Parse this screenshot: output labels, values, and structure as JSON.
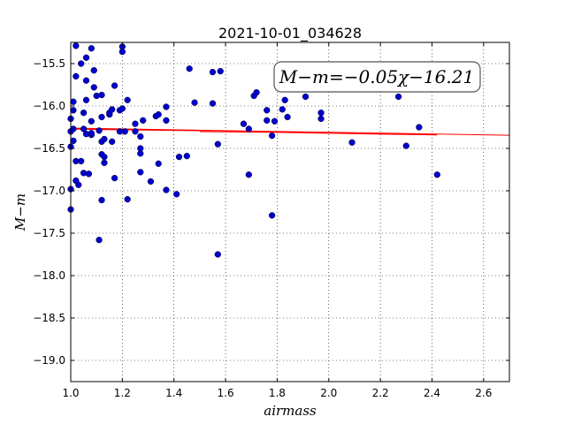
{
  "chart_data": {
    "type": "scatter",
    "title": "2021-10-01_034628",
    "xlabel": "airmass",
    "ylabel": "M−m",
    "annotation": "M−m=−0.05χ−16.21",
    "xlim": [
      1.0,
      2.7
    ],
    "ylim": [
      -19.25,
      -15.25
    ],
    "x_ticks": [
      1.0,
      1.2,
      1.4,
      1.6,
      1.8,
      2.0,
      2.2,
      2.4,
      2.6
    ],
    "x_tick_labels": [
      "1.0",
      "1.2",
      "1.4",
      "1.6",
      "1.8",
      "2.0",
      "2.2",
      "2.4",
      "2.6"
    ],
    "y_ticks": [
      -15.5,
      -16.0,
      -16.5,
      -17.0,
      -17.5,
      -18.0,
      -18.5,
      -19.0
    ],
    "y_tick_labels": [
      "−15.5",
      "−16.0",
      "−16.5",
      "−17.0",
      "−17.5",
      "−18.0",
      "−18.5",
      "−19.0"
    ],
    "grid": true,
    "marker_color": "#0000cc",
    "fit_color": "#ff0000",
    "fit": {
      "slope": -0.05,
      "intercept": -16.21,
      "x_range": [
        1.0,
        2.7
      ]
    },
    "fit_segments": [
      {
        "x": [
          1.0,
          1.2
        ],
        "y": [
          -16.27,
          -16.28
        ]
      },
      {
        "x": [
          1.2,
          1.5
        ],
        "y": [
          -16.28,
          -16.29
        ]
      },
      {
        "x": [
          1.5,
          1.8
        ],
        "y": [
          -16.3,
          -16.31
        ]
      },
      {
        "x": [
          1.8,
          2.0
        ],
        "y": [
          -16.31,
          -16.32
        ]
      },
      {
        "x": [
          2.0,
          2.2
        ],
        "y": [
          -16.32,
          -16.33
        ]
      },
      {
        "x": [
          2.2,
          2.42
        ],
        "y": [
          -16.33,
          -16.34
        ]
      }
    ],
    "points": [
      [
        1.0,
        -16.15
      ],
      [
        1.0,
        -16.3
      ],
      [
        1.0,
        -16.48
      ],
      [
        1.0,
        -16.98
      ],
      [
        1.0,
        -17.22
      ],
      [
        1.01,
        -15.95
      ],
      [
        1.01,
        -16.05
      ],
      [
        1.01,
        -16.27
      ],
      [
        1.01,
        -16.41
      ],
      [
        1.02,
        -15.29
      ],
      [
        1.02,
        -15.65
      ],
      [
        1.02,
        -16.65
      ],
      [
        1.02,
        -16.88
      ],
      [
        1.03,
        -16.93
      ],
      [
        1.04,
        -15.5
      ],
      [
        1.04,
        -16.65
      ],
      [
        1.05,
        -16.08
      ],
      [
        1.05,
        -16.27
      ],
      [
        1.05,
        -16.79
      ],
      [
        1.06,
        -15.43
      ],
      [
        1.06,
        -15.7
      ],
      [
        1.06,
        -15.93
      ],
      [
        1.06,
        -16.33
      ],
      [
        1.07,
        -16.8
      ],
      [
        1.08,
        -16.18
      ],
      [
        1.08,
        -16.34
      ],
      [
        1.08,
        -16.32
      ],
      [
        1.08,
        -15.32
      ],
      [
        1.09,
        -15.58
      ],
      [
        1.09,
        -15.78
      ],
      [
        1.1,
        -15.88
      ],
      [
        1.11,
        -16.29
      ],
      [
        1.11,
        -17.58
      ],
      [
        1.12,
        -15.87
      ],
      [
        1.12,
        -16.57
      ],
      [
        1.12,
        -16.42
      ],
      [
        1.12,
        -17.11
      ],
      [
        1.12,
        -16.13
      ],
      [
        1.13,
        -16.67
      ],
      [
        1.13,
        -16.6
      ],
      [
        1.13,
        -16.39
      ],
      [
        1.15,
        -16.1
      ],
      [
        1.15,
        -16.08
      ],
      [
        1.16,
        -16.42
      ],
      [
        1.16,
        -16.04
      ],
      [
        1.17,
        -15.76
      ],
      [
        1.17,
        -16.85
      ],
      [
        1.19,
        -16.3
      ],
      [
        1.19,
        -16.05
      ],
      [
        1.2,
        -15.3
      ],
      [
        1.2,
        -15.36
      ],
      [
        1.2,
        -16.03
      ],
      [
        1.21,
        -16.3
      ],
      [
        1.22,
        -15.93
      ],
      [
        1.22,
        -17.1
      ],
      [
        1.25,
        -16.21
      ],
      [
        1.25,
        -16.3
      ],
      [
        1.27,
        -16.36
      ],
      [
        1.27,
        -16.5
      ],
      [
        1.27,
        -16.56
      ],
      [
        1.27,
        -16.78
      ],
      [
        1.28,
        -16.17
      ],
      [
        1.31,
        -16.89
      ],
      [
        1.33,
        -16.12
      ],
      [
        1.34,
        -16.1
      ],
      [
        1.34,
        -16.68
      ],
      [
        1.37,
        -16.01
      ],
      [
        1.37,
        -16.17
      ],
      [
        1.37,
        -16.99
      ],
      [
        1.41,
        -17.04
      ],
      [
        1.42,
        -16.6
      ],
      [
        1.45,
        -16.59
      ],
      [
        1.46,
        -15.56
      ],
      [
        1.48,
        -15.96
      ],
      [
        1.55,
        -15.6
      ],
      [
        1.55,
        -15.97
      ],
      [
        1.57,
        -16.45
      ],
      [
        1.57,
        -17.75
      ],
      [
        1.58,
        -15.59
      ],
      [
        1.67,
        -16.21
      ],
      [
        1.69,
        -16.27
      ],
      [
        1.69,
        -16.81
      ],
      [
        1.71,
        -15.88
      ],
      [
        1.72,
        -15.84
      ],
      [
        1.76,
        -16.05
      ],
      [
        1.76,
        -16.17
      ],
      [
        1.78,
        -16.35
      ],
      [
        1.78,
        -17.29
      ],
      [
        1.79,
        -16.18
      ],
      [
        1.82,
        -16.04
      ],
      [
        1.83,
        -15.93
      ],
      [
        1.84,
        -16.13
      ],
      [
        1.91,
        -15.89
      ],
      [
        1.97,
        -16.08
      ],
      [
        1.97,
        -16.15
      ],
      [
        2.09,
        -16.43
      ],
      [
        2.27,
        -15.89
      ],
      [
        2.3,
        -16.47
      ],
      [
        2.35,
        -16.25
      ],
      [
        2.42,
        -16.81
      ]
    ]
  }
}
